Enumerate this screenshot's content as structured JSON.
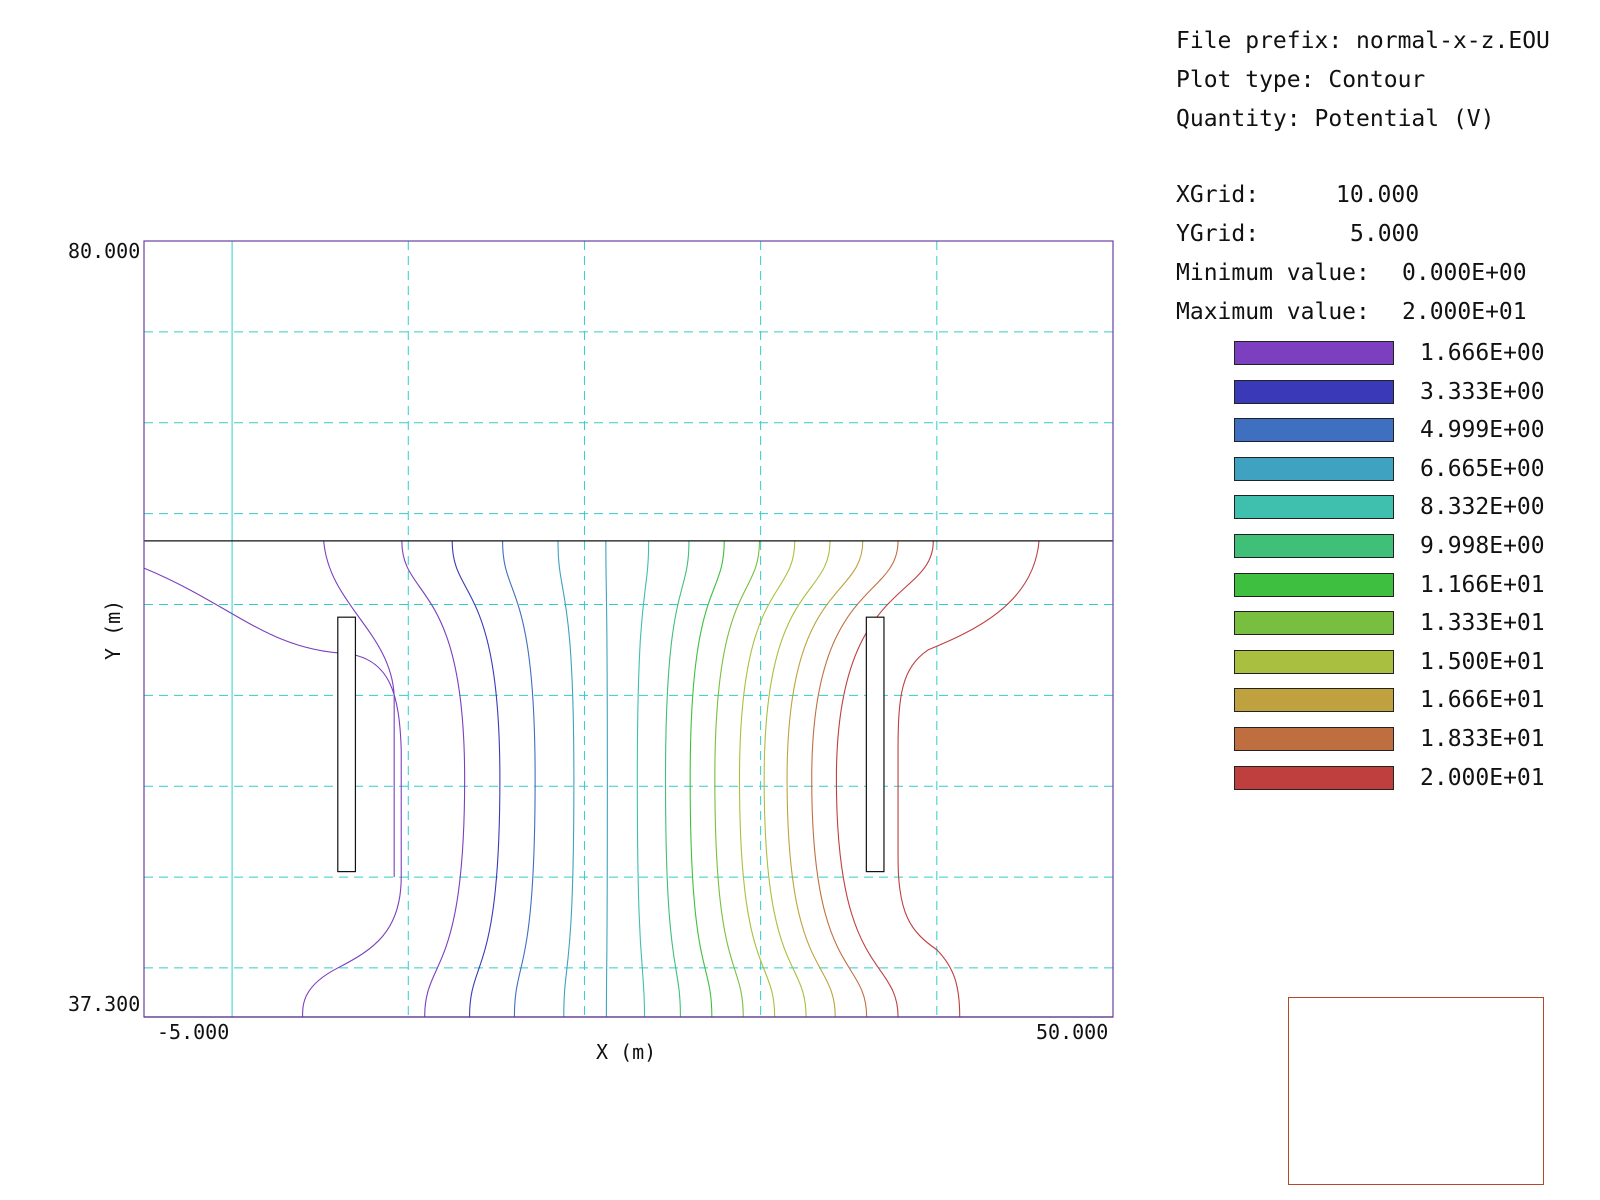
{
  "header": {
    "file_prefix_label": "File prefix:",
    "file_prefix": "normal-x-z.EOU",
    "plot_type_label": "Plot type:",
    "plot_type": "Contour",
    "quantity_label": "Quantity:",
    "quantity": "Potential (V)"
  },
  "stats": {
    "xgrid_label": "XGrid:",
    "xgrid": "10.000",
    "ygrid_label": "YGrid:",
    "ygrid": "5.000",
    "min_label": "Minimum value:",
    "min": "0.000E+00",
    "max_label": "Maximum value:",
    "max": "2.000E+01"
  },
  "legend": [
    {
      "label": "1.666E+00",
      "color": "#7b3fbf"
    },
    {
      "label": "3.333E+00",
      "color": "#3a3ab8"
    },
    {
      "label": "4.999E+00",
      "color": "#3f6fc0"
    },
    {
      "label": "6.665E+00",
      "color": "#3fa2c0"
    },
    {
      "label": "8.332E+00",
      "color": "#3fbfae"
    },
    {
      "label": "9.998E+00",
      "color": "#3fbf78"
    },
    {
      "label": "1.166E+01",
      "color": "#3fbf3f"
    },
    {
      "label": "1.333E+01",
      "color": "#78bf3f"
    },
    {
      "label": "1.500E+01",
      "color": "#a9bf3f"
    },
    {
      "label": "1.666E+01",
      "color": "#bfa23f"
    },
    {
      "label": "1.833E+01",
      "color": "#bf6f3f"
    },
    {
      "label": "2.000E+01",
      "color": "#bf3f3f"
    }
  ],
  "chart_data": {
    "type": "contour",
    "title": "",
    "xlabel": "X (m)",
    "ylabel": "Y (m)",
    "xlim": [
      -5.0,
      50.0
    ],
    "ylim": [
      37.3,
      80.0
    ],
    "xtick_labels": [
      "-5.000",
      "50.000"
    ],
    "ytick_labels": [
      "80.000",
      "37.300"
    ],
    "xgrid": 10.0,
    "ygrid": 5.0,
    "grid": true,
    "grid_color": "#33cccc",
    "frame_color": "#6a3fa0",
    "domain_top_y": 63.5,
    "electrodes": [
      {
        "x": [
          6.0,
          7.0
        ],
        "y": [
          45.3,
          59.3
        ]
      },
      {
        "x": [
          36.0,
          37.0
        ],
        "y": [
          45.3,
          59.3
        ]
      }
    ],
    "contour_x_at_mid": [
      13.2,
      15.2,
      17.2,
      19.4,
      21.3,
      23.0,
      24.6,
      26.0,
      27.4,
      28.8,
      30.2,
      31.5,
      32.9,
      34.3
    ],
    "contour_levels": [
      1.666,
      3.333,
      4.999,
      6.665,
      8.332,
      9.998,
      11.66,
      13.33,
      15.0,
      16.66,
      18.33,
      20.0
    ]
  }
}
